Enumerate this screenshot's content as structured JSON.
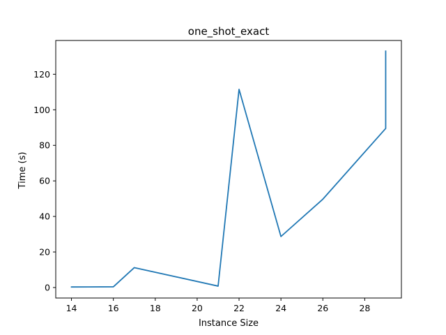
{
  "chart_data": {
    "type": "line",
    "title": "one_shot_exact",
    "xlabel": "Instance Size",
    "ylabel": "Time (s)",
    "xlim": [
      13.25,
      29.75
    ],
    "ylim": [
      -5.9,
      139.0
    ],
    "xticks": [
      14,
      16,
      18,
      20,
      22,
      24,
      26,
      28
    ],
    "yticks": [
      0,
      20,
      40,
      60,
      80,
      100,
      120
    ],
    "grid": false,
    "series_color": "#1f77b4",
    "series": [
      {
        "x": [
          14,
          16,
          17,
          21,
          22,
          24,
          26,
          29,
          29
        ],
        "y": [
          0.3,
          0.4,
          11.2,
          0.8,
          111.5,
          28.7,
          49.7,
          89.5,
          133.0
        ]
      }
    ]
  }
}
